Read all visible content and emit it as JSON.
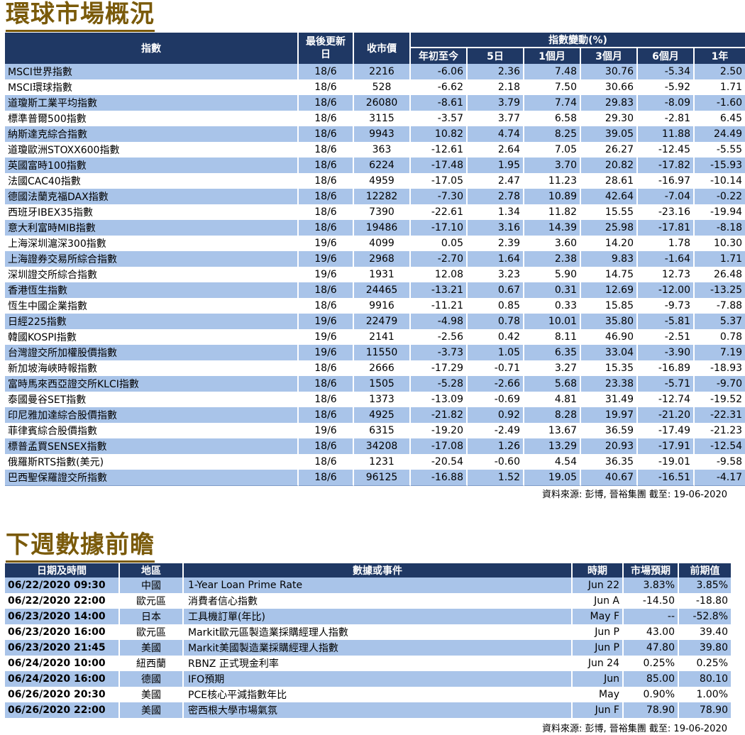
{
  "section1": {
    "title": "環球市場概況",
    "headers": {
      "index": "指數",
      "last_update": "最後更新日",
      "close": "收市價",
      "change_group": "指數變動(%)",
      "ytd": "年初至今",
      "d5": "5日",
      "m1": "1個月",
      "m3": "3個月",
      "m6": "6個月",
      "y1": "1年"
    },
    "rows": [
      {
        "name": "MSCI世界指數",
        "date": "18/6",
        "close": "2216",
        "ytd": "-6.06",
        "d5": "2.36",
        "m1": "7.48",
        "m3": "30.76",
        "m6": "-5.34",
        "y1": "2.50"
      },
      {
        "name": "MSCI環球指數",
        "date": "18/6",
        "close": "528",
        "ytd": "-6.62",
        "d5": "2.18",
        "m1": "7.50",
        "m3": "30.66",
        "m6": "-5.92",
        "y1": "1.71"
      },
      {
        "name": "道瓊斯工業平均指數",
        "date": "18/6",
        "close": "26080",
        "ytd": "-8.61",
        "d5": "3.79",
        "m1": "7.74",
        "m3": "29.83",
        "m6": "-8.09",
        "y1": "-1.60"
      },
      {
        "name": "標準普爾500指數",
        "date": "18/6",
        "close": "3115",
        "ytd": "-3.57",
        "d5": "3.77",
        "m1": "6.58",
        "m3": "29.30",
        "m6": "-2.81",
        "y1": "6.45"
      },
      {
        "name": "納斯達克綜合指數",
        "date": "18/6",
        "close": "9943",
        "ytd": "10.82",
        "d5": "4.74",
        "m1": "8.25",
        "m3": "39.05",
        "m6": "11.88",
        "y1": "24.49"
      },
      {
        "name": "道瓊歐洲STOXX600指數",
        "date": "18/6",
        "close": "363",
        "ytd": "-12.61",
        "d5": "2.64",
        "m1": "7.05",
        "m3": "26.27",
        "m6": "-12.45",
        "y1": "-5.55"
      },
      {
        "name": "英國富時100指數",
        "date": "18/6",
        "close": "6224",
        "ytd": "-17.48",
        "d5": "1.95",
        "m1": "3.70",
        "m3": "20.82",
        "m6": "-17.82",
        "y1": "-15.93"
      },
      {
        "name": "法國CAC40指數",
        "date": "18/6",
        "close": "4959",
        "ytd": "-17.05",
        "d5": "2.47",
        "m1": "11.23",
        "m3": "28.61",
        "m6": "-16.97",
        "y1": "-10.14"
      },
      {
        "name": "德國法蘭克福DAX指數",
        "date": "18/6",
        "close": "12282",
        "ytd": "-7.30",
        "d5": "2.78",
        "m1": "10.89",
        "m3": "42.64",
        "m6": "-7.04",
        "y1": "-0.22"
      },
      {
        "name": "西班牙IBEX35指數",
        "date": "18/6",
        "close": "7390",
        "ytd": "-22.61",
        "d5": "1.34",
        "m1": "11.82",
        "m3": "15.55",
        "m6": "-23.16",
        "y1": "-19.94"
      },
      {
        "name": "意大利富時MIB指數",
        "date": "18/6",
        "close": "19486",
        "ytd": "-17.10",
        "d5": "3.16",
        "m1": "14.39",
        "m3": "25.98",
        "m6": "-17.81",
        "y1": "-8.18"
      },
      {
        "name": "上海深圳滬深300指數",
        "date": "19/6",
        "close": "4099",
        "ytd": "0.05",
        "d5": "2.39",
        "m1": "3.60",
        "m3": "14.20",
        "m6": "1.78",
        "y1": "10.30"
      },
      {
        "name": "上海證券交易所綜合指數",
        "date": "19/6",
        "close": "2968",
        "ytd": "-2.70",
        "d5": "1.64",
        "m1": "2.38",
        "m3": "9.83",
        "m6": "-1.64",
        "y1": "1.71"
      },
      {
        "name": "深圳證交所綜合指數",
        "date": "19/6",
        "close": "1931",
        "ytd": "12.08",
        "d5": "3.23",
        "m1": "5.90",
        "m3": "14.75",
        "m6": "12.73",
        "y1": "26.48"
      },
      {
        "name": "香港恆生指數",
        "date": "18/6",
        "close": "24465",
        "ytd": "-13.21",
        "d5": "0.67",
        "m1": "0.31",
        "m3": "12.69",
        "m6": "-12.00",
        "y1": "-13.25"
      },
      {
        "name": "恆生中國企業指數",
        "date": "18/6",
        "close": "9916",
        "ytd": "-11.21",
        "d5": "0.85",
        "m1": "0.33",
        "m3": "15.85",
        "m6": "-9.73",
        "y1": "-7.88"
      },
      {
        "name": "日經225指數",
        "date": "19/6",
        "close": "22479",
        "ytd": "-4.98",
        "d5": "0.78",
        "m1": "10.01",
        "m3": "35.80",
        "m6": "-5.81",
        "y1": "5.37"
      },
      {
        "name": "韓國KOSPI指數",
        "date": "19/6",
        "close": "2141",
        "ytd": "-2.56",
        "d5": "0.42",
        "m1": "8.11",
        "m3": "46.90",
        "m6": "-2.51",
        "y1": "0.78"
      },
      {
        "name": "台灣證交所加權股價指數",
        "date": "19/6",
        "close": "11550",
        "ytd": "-3.73",
        "d5": "1.05",
        "m1": "6.35",
        "m3": "33.04",
        "m6": "-3.90",
        "y1": "7.19"
      },
      {
        "name": "新加坡海峽時報指數",
        "date": "18/6",
        "close": "2666",
        "ytd": "-17.29",
        "d5": "-0.71",
        "m1": "3.27",
        "m3": "15.35",
        "m6": "-16.89",
        "y1": "-18.93"
      },
      {
        "name": "富時馬來西亞證交所KLCI指數",
        "date": "18/6",
        "close": "1505",
        "ytd": "-5.28",
        "d5": "-2.66",
        "m1": "5.68",
        "m3": "23.38",
        "m6": "-5.71",
        "y1": "-9.70"
      },
      {
        "name": "泰國曼谷SET指數",
        "date": "18/6",
        "close": "1373",
        "ytd": "-13.09",
        "d5": "-0.69",
        "m1": "4.81",
        "m3": "31.49",
        "m6": "-12.74",
        "y1": "-19.52"
      },
      {
        "name": "印尼雅加達綜合股價指數",
        "date": "18/6",
        "close": "4925",
        "ytd": "-21.82",
        "d5": "0.92",
        "m1": "8.28",
        "m3": "19.97",
        "m6": "-21.20",
        "y1": "-22.31"
      },
      {
        "name": "菲律賓綜合股價指數",
        "date": "19/6",
        "close": "6315",
        "ytd": "-19.20",
        "d5": "-2.49",
        "m1": "13.67",
        "m3": "36.59",
        "m6": "-17.49",
        "y1": "-21.23"
      },
      {
        "name": "標普孟買SENSEX指數",
        "date": "18/6",
        "close": "34208",
        "ytd": "-17.08",
        "d5": "1.26",
        "m1": "13.29",
        "m3": "20.93",
        "m6": "-17.91",
        "y1": "-12.54"
      },
      {
        "name": "俄羅斯RTS指數(美元)",
        "date": "18/6",
        "close": "1231",
        "ytd": "-20.54",
        "d5": "-0.60",
        "m1": "4.54",
        "m3": "36.35",
        "m6": "-19.01",
        "y1": "-9.58"
      },
      {
        "name": "巴西聖保羅證交所指數",
        "date": "18/6",
        "close": "96125",
        "ytd": "-16.88",
        "d5": "1.52",
        "m1": "19.05",
        "m3": "40.67",
        "m6": "-16.51",
        "y1": "-4.17"
      }
    ],
    "source": "資料來源: 彭博, 晉裕集團 截至: 19-06-2020"
  },
  "section2": {
    "title": "下週數據前瞻",
    "headers": {
      "datetime": "日期及時間",
      "region": "地區",
      "event": "數據或事件",
      "period": "時期",
      "forecast": "市場預期",
      "previous": "前期值"
    },
    "rows": [
      {
        "datetime": "06/22/2020 09:30",
        "region": "中國",
        "event": "1-Year Loan Prime Rate",
        "period": "Jun 22",
        "forecast": "3.83%",
        "previous": "3.85%"
      },
      {
        "datetime": "06/22/2020 22:00",
        "region": "歐元區",
        "event": "消費者信心指數",
        "period": "Jun A",
        "forecast": "-14.50",
        "previous": "-18.80"
      },
      {
        "datetime": "06/23/2020 14:00",
        "region": "日本",
        "event": "工具機訂單(年比)",
        "period": "May F",
        "forecast": "--",
        "previous": "-52.8%"
      },
      {
        "datetime": "06/23/2020 16:00",
        "region": "歐元區",
        "event": "Markit歐元區製造業採購經理人指數",
        "period": "Jun P",
        "forecast": "43.00",
        "previous": "39.40"
      },
      {
        "datetime": "06/23/2020 21:45",
        "region": "美國",
        "event": "Markit美國製造業採購經理人指數",
        "period": "Jun P",
        "forecast": "47.80",
        "previous": "39.80"
      },
      {
        "datetime": "06/24/2020 10:00",
        "region": "紐西蘭",
        "event": "RBNZ 正式現金利率",
        "period": "Jun 24",
        "forecast": "0.25%",
        "previous": "0.25%"
      },
      {
        "datetime": "06/24/2020 16:00",
        "region": "德國",
        "event": "IFO預期",
        "period": "Jun",
        "forecast": "85.00",
        "previous": "80.10"
      },
      {
        "datetime": "06/26/2020 20:30",
        "region": "美國",
        "event": "PCE核心平減指數年比",
        "period": "May",
        "forecast": "0.90%",
        "previous": "1.00%"
      },
      {
        "datetime": "06/26/2020 22:00",
        "region": "美國",
        "event": "密西根大學市場氣氛",
        "period": "Jun F",
        "forecast": "78.90",
        "previous": "78.90"
      }
    ],
    "source": "資料來源: 彭博, 晉裕集團 截至: 19-06-2020"
  }
}
